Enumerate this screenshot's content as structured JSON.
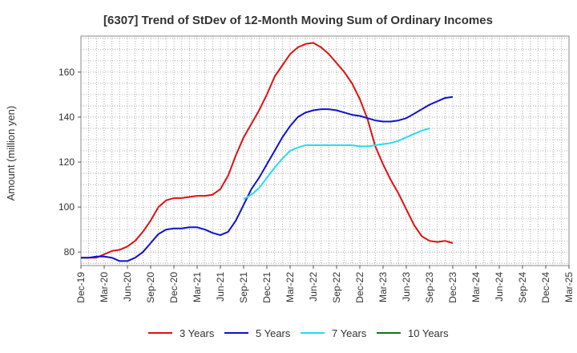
{
  "chart_data": {
    "type": "line",
    "title": "[6307]  Trend of StDev of 12-Month Moving Sum of Ordinary Incomes",
    "xlabel": "",
    "ylabel": "Amount (million yen)",
    "ylim": [
      74,
      176
    ],
    "yticks": [
      80,
      100,
      120,
      140,
      160
    ],
    "x_tick_labels": [
      "Dec-19",
      "Mar-20",
      "Jun-20",
      "Sep-20",
      "Dec-20",
      "Mar-21",
      "Jun-21",
      "Sep-21",
      "Dec-21",
      "Mar-22",
      "Jun-22",
      "Sep-22",
      "Dec-22",
      "Mar-23",
      "Jun-23",
      "Sep-23",
      "Dec-23",
      "Mar-24",
      "Jun-24",
      "Sep-24",
      "Dec-24",
      "Mar-25"
    ],
    "x_start": "Dec-19",
    "x_end": "Mar-25",
    "grid": true,
    "legend_position": "bottom",
    "series": [
      {
        "name": "3 Years",
        "color": "#dd1111",
        "start_index": 0,
        "values": [
          77.5,
          77.5,
          77.5,
          79,
          80.5,
          81,
          82.5,
          85,
          89,
          94,
          100,
          103,
          104,
          104,
          104.5,
          105,
          105,
          105.5,
          108,
          114,
          123,
          131,
          137,
          143,
          150,
          158,
          163,
          168,
          171,
          172.5,
          173,
          171,
          168,
          164,
          160,
          155,
          148,
          139,
          127,
          119,
          112,
          106,
          99,
          92,
          87,
          85,
          84.5,
          85,
          84
        ]
      },
      {
        "name": "5 Years",
        "color": "#1111cc",
        "start_index": 0,
        "values": [
          77.5,
          77.5,
          78,
          78,
          77.5,
          76,
          76,
          77.5,
          80,
          84,
          88,
          90,
          90.5,
          90.5,
          91,
          91,
          90,
          88.5,
          87.5,
          89,
          94,
          101,
          108,
          113,
          119,
          125,
          131,
          136,
          140,
          142,
          143,
          143.5,
          143.5,
          143,
          142,
          141,
          140.5,
          139.5,
          138.5,
          138,
          138,
          138.5,
          139.5,
          141.5,
          143.5,
          145.5,
          147,
          148.5,
          149
        ]
      },
      {
        "name": "7 Years",
        "color": "#22ddee",
        "start_index": 21,
        "values": [
          103.5,
          105.5,
          108.5,
          113,
          117.5,
          121.5,
          125,
          126.5,
          127.5,
          127.5,
          127.5,
          127.5,
          127.5,
          127.5,
          127.5,
          127,
          127,
          127.5,
          128,
          128.5,
          129.5,
          131,
          132.5,
          134,
          135
        ]
      },
      {
        "name": "10 Years",
        "color": "#117711",
        "start_index": 0,
        "values": []
      }
    ]
  }
}
